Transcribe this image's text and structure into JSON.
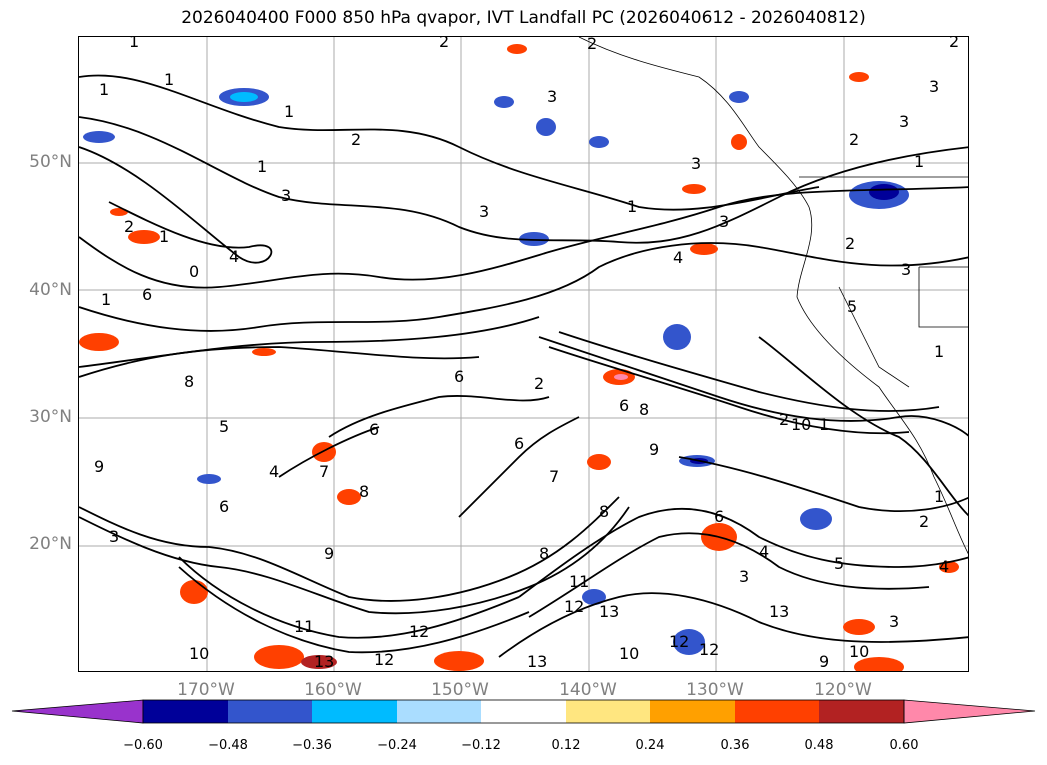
{
  "title": "2026040400 F000 850 hPa qvapor, IVT Landfall PC (2026040612 - 2026040812)",
  "lat_labels": [
    "50°N",
    "40°N",
    "30°N",
    "20°N"
  ],
  "lon_labels": [
    "170°W",
    "160°W",
    "150°W",
    "140°W",
    "130°W",
    "120°W"
  ],
  "colorbar": {
    "ticks": [
      "−0.60",
      "−0.48",
      "−0.36",
      "−0.24",
      "−0.12",
      "0.12",
      "0.24",
      "0.36",
      "0.48",
      "0.60"
    ],
    "colors": [
      "#9933cc",
      "#000099",
      "#3355cc",
      "#00bbff",
      "#aaddff",
      "#ffffff",
      "#ffe680",
      "#ffa000",
      "#ff4000",
      "#b22222",
      "#ff88aa"
    ]
  },
  "contour_labels": [
    "1",
    "1",
    "1",
    "1",
    "2",
    "1",
    "3",
    "2",
    "2",
    "3",
    "3",
    "3",
    "1",
    "3",
    "3",
    "2",
    "1",
    "4",
    "3",
    "5",
    "2",
    "1",
    "0",
    "6",
    "4",
    "1",
    "6",
    "2",
    "8",
    "6",
    "6",
    "8",
    "5",
    "6",
    "9",
    "7",
    "8",
    "6",
    "4",
    "3",
    "9",
    "8",
    "8",
    "9",
    "6",
    "7",
    "2",
    "10",
    "1",
    "1",
    "2",
    "5",
    "4",
    "3",
    "11",
    "12",
    "13",
    "12",
    "13",
    "12",
    "11",
    "10",
    "13",
    "12",
    "10",
    "13",
    "12",
    "10",
    "9",
    "3",
    "4",
    "2",
    "1",
    "2",
    "3"
  ]
}
